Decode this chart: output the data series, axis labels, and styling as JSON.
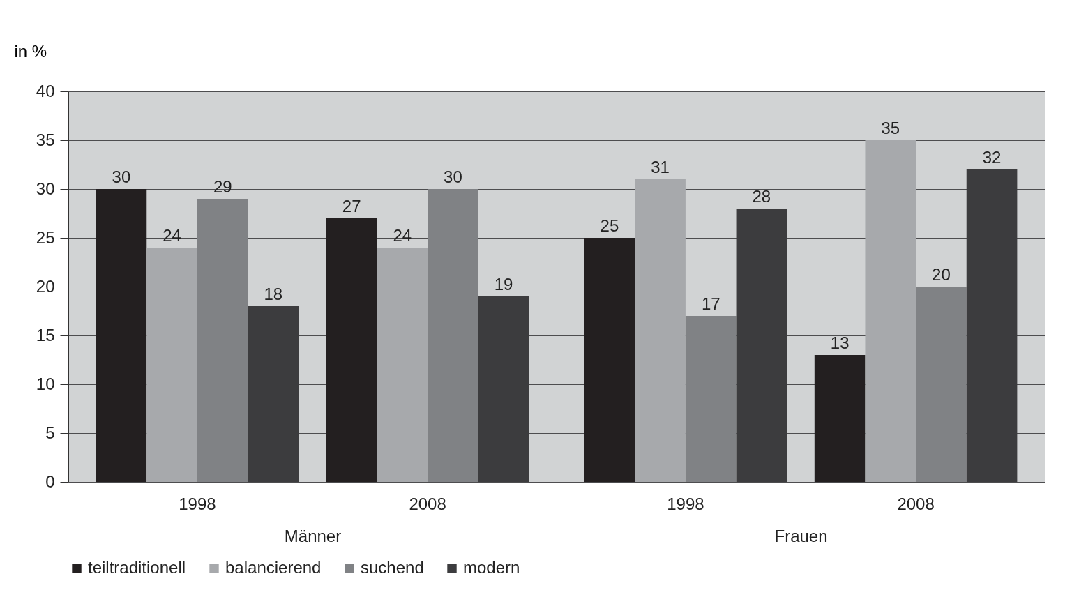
{
  "chart_data": [
    {
      "type": "bar",
      "ylabel": "in %",
      "xlabel": "Männer",
      "categories": [
        "1998",
        "2008"
      ],
      "ylim": [
        0,
        40
      ],
      "yticks": [
        0,
        5,
        10,
        15,
        20,
        25,
        30,
        35,
        40
      ],
      "grid": "y",
      "legend": "bottom",
      "data_labels": true,
      "series": [
        {
          "name": "teiltraditionell",
          "color": "#231f20",
          "values": [
            30,
            27
          ]
        },
        {
          "name": "balancierend",
          "color": "#a7a9ac",
          "values": [
            24,
            24
          ]
        },
        {
          "name": "suchend",
          "color": "#808285",
          "values": [
            29,
            30
          ]
        },
        {
          "name": "modern",
          "color": "#3c3c3e",
          "values": [
            18,
            19
          ]
        }
      ]
    },
    {
      "type": "bar",
      "xlabel": "Frauen",
      "categories": [
        "1998",
        "2008"
      ],
      "ylim": [
        0,
        40
      ],
      "yticks": [
        0,
        5,
        10,
        15,
        20,
        25,
        30,
        35,
        40
      ],
      "grid": "y",
      "data_labels": true,
      "tick_labels": "x",
      "series": [
        {
          "color": "#231f20",
          "values": [
            25,
            13
          ]
        },
        {
          "color": "#a7a9ac",
          "values": [
            31,
            35
          ]
        },
        {
          "color": "#808285",
          "values": [
            17,
            20
          ]
        },
        {
          "color": "#3c3c3e",
          "values": [
            28,
            32
          ]
        }
      ]
    }
  ]
}
